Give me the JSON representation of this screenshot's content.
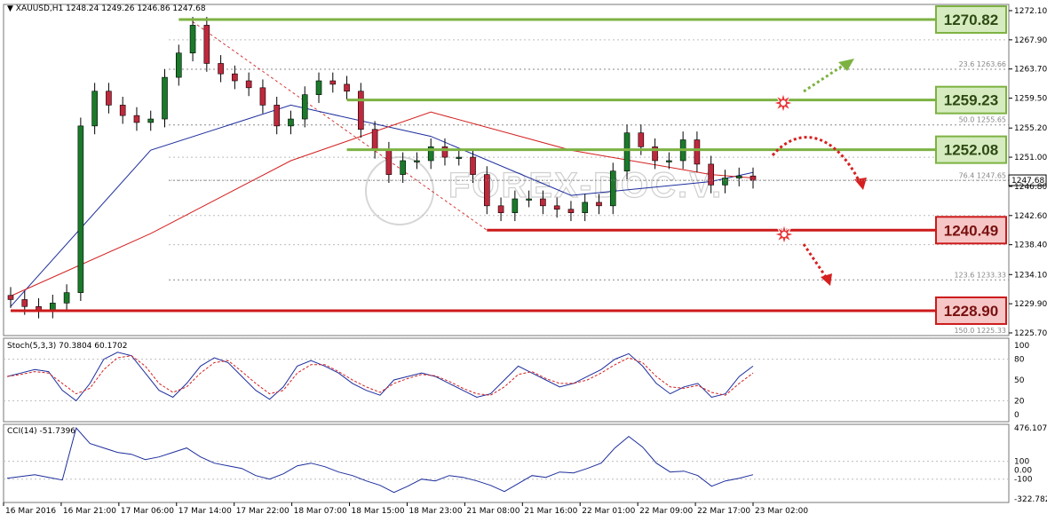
{
  "header": {
    "symbol": "XAUUSD,H1",
    "ohlc": "1248.24 1249.26 1246.86 1247.68"
  },
  "price_axis": {
    "ticks": [
      "1272.10",
      "1267.90",
      "1263.70",
      "1259.50",
      "1255.20",
      "1251.00",
      "1246.80",
      "1242.60",
      "1238.40",
      "1234.10",
      "1229.90",
      "1225.70"
    ],
    "current": "1247.68"
  },
  "time_axis": [
    "16 Mar 2016",
    "16 Mar 21:00",
    "17 Mar 06:00",
    "17 Mar 14:00",
    "17 Mar 22:00",
    "18 Mar 07:00",
    "18 Mar 15:00",
    "18 Mar 23:00",
    "21 Mar 08:00",
    "21 Mar 16:00",
    "22 Mar 01:00",
    "22 Mar 09:00",
    "22 Mar 17:00",
    "23 Mar 02:00"
  ],
  "fib_levels": [
    {
      "label": "23.6",
      "value": "1263.66"
    },
    {
      "label": "50.0",
      "value": "1255.65"
    },
    {
      "label": "76.4",
      "value": "1247.65"
    },
    {
      "label": "123.6",
      "value": "1233.33"
    },
    {
      "label": "150.0",
      "value": "1225.33"
    }
  ],
  "key_levels": [
    {
      "value": "1270.82",
      "kind": "resistance",
      "color": "#7db242"
    },
    {
      "value": "1259.23",
      "kind": "resistance",
      "color": "#7db242"
    },
    {
      "value": "1252.08",
      "kind": "resistance",
      "color": "#7db242"
    },
    {
      "value": "1240.49",
      "kind": "support",
      "color": "#cc1a1a"
    },
    {
      "value": "1228.90",
      "kind": "support",
      "color": "#cc1a1a"
    }
  ],
  "stoch": {
    "label": "Stoch(5,3,3) 70.3804 60.1702",
    "ticks": [
      "100",
      "80",
      "50",
      "20",
      "0"
    ]
  },
  "cci": {
    "label": "CCI(14) -51.7396",
    "ticks": [
      "476.1078",
      "100",
      "0.00",
      "-100",
      "-322.7829"
    ]
  },
  "watermark": "FOREX-DOC.V.",
  "colors": {
    "bull": "#1a7a2a",
    "bear": "#c0283c",
    "ma_fast": "#1c2d9c",
    "ma_slow": "#d42020",
    "green_level": "#7db242",
    "red_level": "#cc1a1a"
  },
  "chart_data": {
    "type": "candlestick",
    "title": "XAUUSD,H1",
    "xlabel": "",
    "ylabel": "",
    "ylim": [
      1225.7,
      1272.1
    ],
    "horizontal_levels": [
      1270.82,
      1259.23,
      1252.08,
      1240.49,
      1228.9
    ],
    "fibonacci": {
      "23.6": 1263.66,
      "50.0": 1255.65,
      "76.4": 1247.65,
      "123.6": 1233.33,
      "150.0": 1225.33
    },
    "last_price": 1247.68,
    "series": [
      {
        "name": "price",
        "points": [
          [
            0,
            1230.5
          ],
          [
            1,
            1229.5
          ],
          [
            2,
            1229.0
          ],
          [
            3,
            1230.0
          ],
          [
            4,
            1231.5
          ],
          [
            5,
            1255.5
          ],
          [
            6,
            1260.5
          ],
          [
            7,
            1258.5
          ],
          [
            8,
            1257.0
          ],
          [
            9,
            1256.0
          ],
          [
            10,
            1256.5
          ],
          [
            11,
            1262.5
          ],
          [
            12,
            1266.0
          ],
          [
            13,
            1270.0
          ],
          [
            14,
            1264.5
          ],
          [
            15,
            1263.0
          ],
          [
            16,
            1262.0
          ],
          [
            17,
            1261.0
          ],
          [
            18,
            1258.5
          ],
          [
            19,
            1255.5
          ],
          [
            20,
            1256.5
          ],
          [
            21,
            1260.0
          ],
          [
            22,
            1262.0
          ],
          [
            23,
            1261.5
          ],
          [
            24,
            1260.5
          ],
          [
            25,
            1255.0
          ],
          [
            26,
            1252.0
          ],
          [
            27,
            1248.5
          ],
          [
            28,
            1250.5
          ],
          [
            29,
            1250.5
          ],
          [
            30,
            1252.5
          ],
          [
            31,
            1251.0
          ],
          [
            32,
            1251.0
          ],
          [
            33,
            1248.5
          ],
          [
            34,
            1244.0
          ],
          [
            35,
            1243.0
          ],
          [
            36,
            1245.0
          ],
          [
            37,
            1245.0
          ],
          [
            38,
            1244.0
          ],
          [
            39,
            1243.5
          ],
          [
            40,
            1243.0
          ],
          [
            41,
            1244.5
          ],
          [
            42,
            1244.0
          ],
          [
            43,
            1249.0
          ],
          [
            44,
            1254.5
          ],
          [
            45,
            1252.5
          ],
          [
            46,
            1250.5
          ],
          [
            47,
            1250.5
          ],
          [
            48,
            1253.5
          ],
          [
            49,
            1250.0
          ],
          [
            50,
            1247.0
          ],
          [
            51,
            1248.0
          ],
          [
            52,
            1248.3
          ],
          [
            53,
            1247.68
          ]
        ]
      },
      {
        "name": "MA fast",
        "points": [
          [
            0,
            1229.5
          ],
          [
            10,
            1252.0
          ],
          [
            20,
            1258.5
          ],
          [
            30,
            1254.0
          ],
          [
            40,
            1245.5
          ],
          [
            50,
            1247.5
          ],
          [
            53,
            1248.8
          ]
        ]
      },
      {
        "name": "MA slow",
        "points": [
          [
            0,
            1231.0
          ],
          [
            10,
            1240.0
          ],
          [
            20,
            1250.5
          ],
          [
            30,
            1257.5
          ],
          [
            40,
            1252.0
          ],
          [
            50,
            1248.5
          ],
          [
            53,
            1248.0
          ]
        ]
      }
    ],
    "stochastic": {
      "k": [
        55,
        60,
        65,
        62,
        35,
        20,
        45,
        80,
        90,
        85,
        60,
        35,
        25,
        45,
        70,
        82,
        75,
        55,
        35,
        22,
        40,
        70,
        78,
        70,
        60,
        45,
        35,
        28,
        50,
        55,
        60,
        55,
        45,
        35,
        25,
        30,
        50,
        70,
        60,
        50,
        40,
        45,
        55,
        65,
        80,
        88,
        70,
        45,
        30,
        40,
        45,
        25,
        30,
        55,
        70
      ],
      "d": [
        55,
        58,
        62,
        60,
        45,
        30,
        38,
        65,
        82,
        85,
        70,
        45,
        32,
        40,
        60,
        75,
        78,
        62,
        45,
        30,
        35,
        60,
        72,
        72,
        62,
        50,
        40,
        32,
        45,
        52,
        58,
        56,
        48,
        38,
        30,
        28,
        40,
        58,
        62,
        52,
        45,
        45,
        50,
        60,
        72,
        82,
        75,
        55,
        40,
        38,
        42,
        32,
        28,
        45,
        60
      ],
      "ylim": [
        0,
        100
      ]
    },
    "cci_values": [
      -90,
      -70,
      -50,
      -80,
      -110,
      476,
      300,
      250,
      200,
      180,
      120,
      150,
      200,
      250,
      150,
      80,
      50,
      20,
      -60,
      -100,
      -40,
      50,
      80,
      40,
      -20,
      -60,
      -120,
      -170,
      -250,
      -180,
      -100,
      -120,
      -60,
      -80,
      -120,
      -170,
      -240,
      -150,
      -60,
      -80,
      -20,
      -30,
      20,
      80,
      250,
      380,
      260,
      80,
      -20,
      -10,
      -60,
      -180,
      -120,
      -90,
      -50
    ],
    "cci_ylim": [
      -322.7829,
      476.1078
    ]
  }
}
